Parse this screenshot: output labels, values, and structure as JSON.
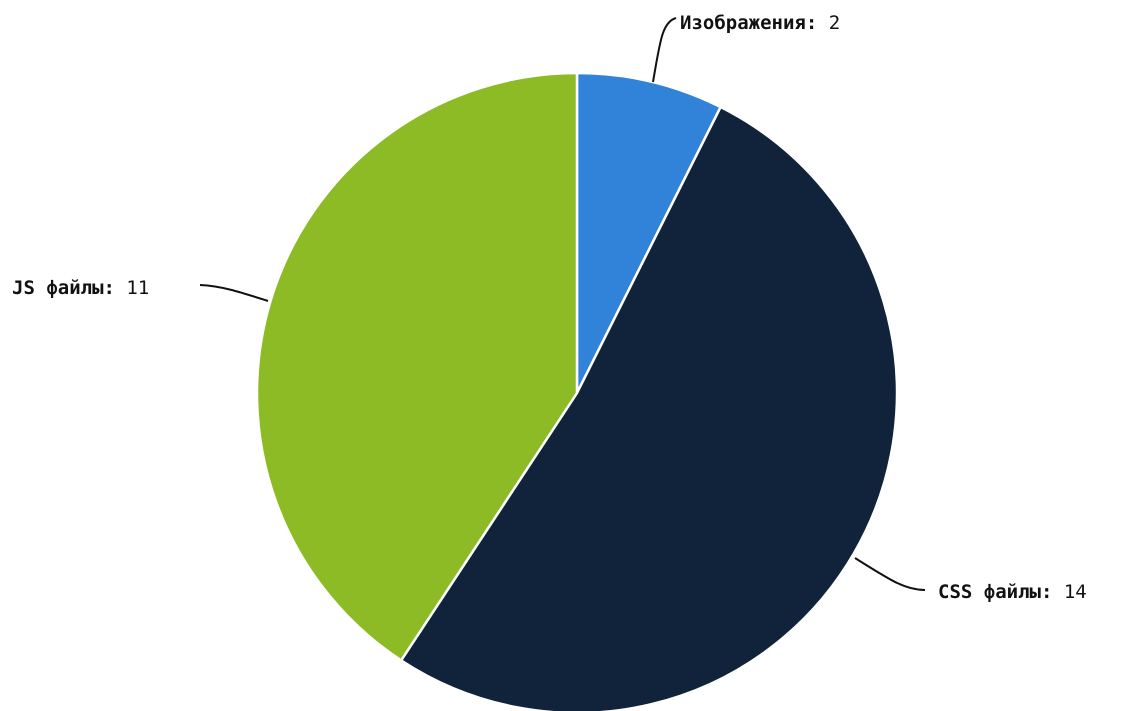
{
  "chart_data": {
    "type": "pie",
    "title": "",
    "categories": [
      "Изображения",
      "CSS файлы",
      "JS файлы"
    ],
    "values": [
      2,
      14,
      11
    ],
    "colors": [
      "#3182d9",
      "#10233a",
      "#8cbb26"
    ],
    "label_separator": ": ",
    "start_angle": "12 o'clock",
    "direction": "clockwise",
    "legend": "none",
    "labels": "outside with leader lines"
  }
}
